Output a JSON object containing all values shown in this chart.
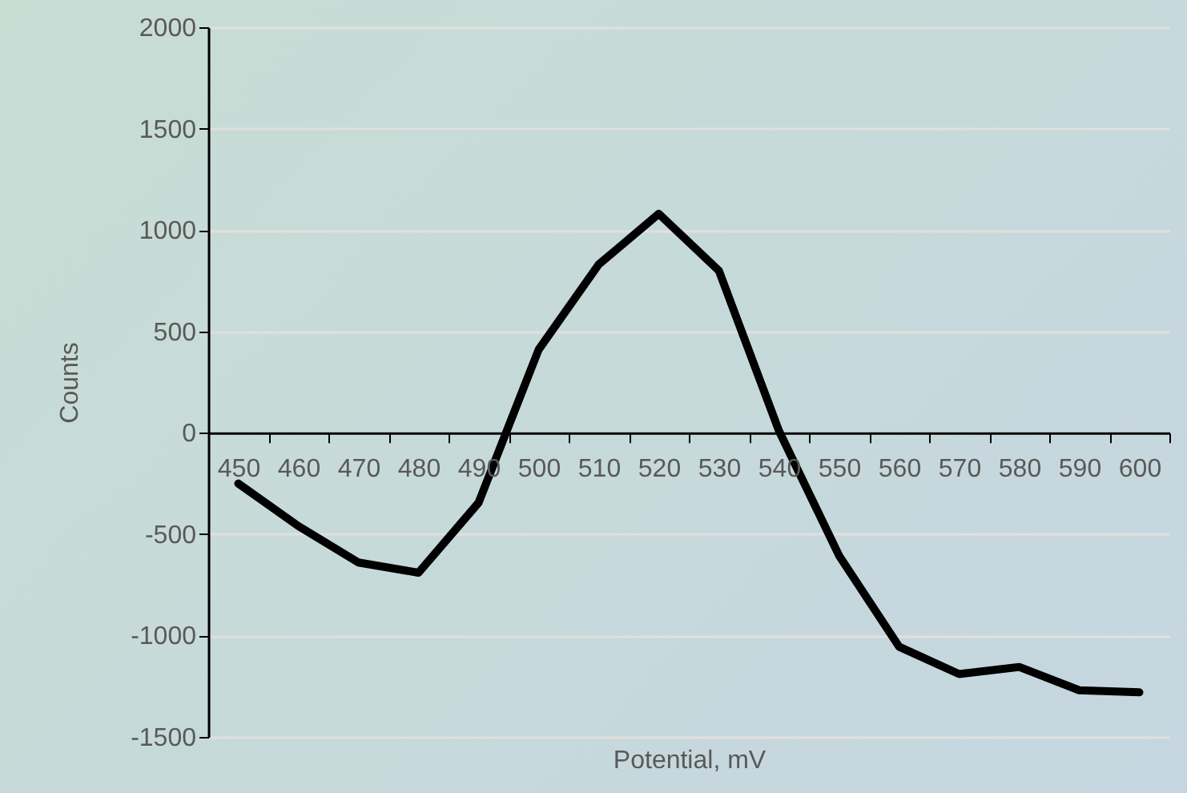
{
  "chart_data": {
    "type": "line",
    "xlabel": "Potential, mV",
    "ylabel": "Counts",
    "categories": [
      "450",
      "460",
      "470",
      "480",
      "490",
      "500",
      "510",
      "520",
      "530",
      "540",
      "550",
      "560",
      "570",
      "580",
      "590",
      "600"
    ],
    "series": [
      {
        "color": "#000000",
        "values": [
          -250,
          -460,
          -640,
          -690,
          -345,
          410,
          830,
          1080,
          800,
          10,
          -605,
          -1055,
          -1190,
          -1155,
          -1270,
          -1280
        ]
      }
    ],
    "ylim": [
      -1500,
      2000
    ],
    "yticks": [
      -1500,
      -1000,
      -500,
      0,
      500,
      1000,
      1500,
      2000
    ],
    "grid": "y",
    "marker": "none",
    "line_style": "solid"
  }
}
